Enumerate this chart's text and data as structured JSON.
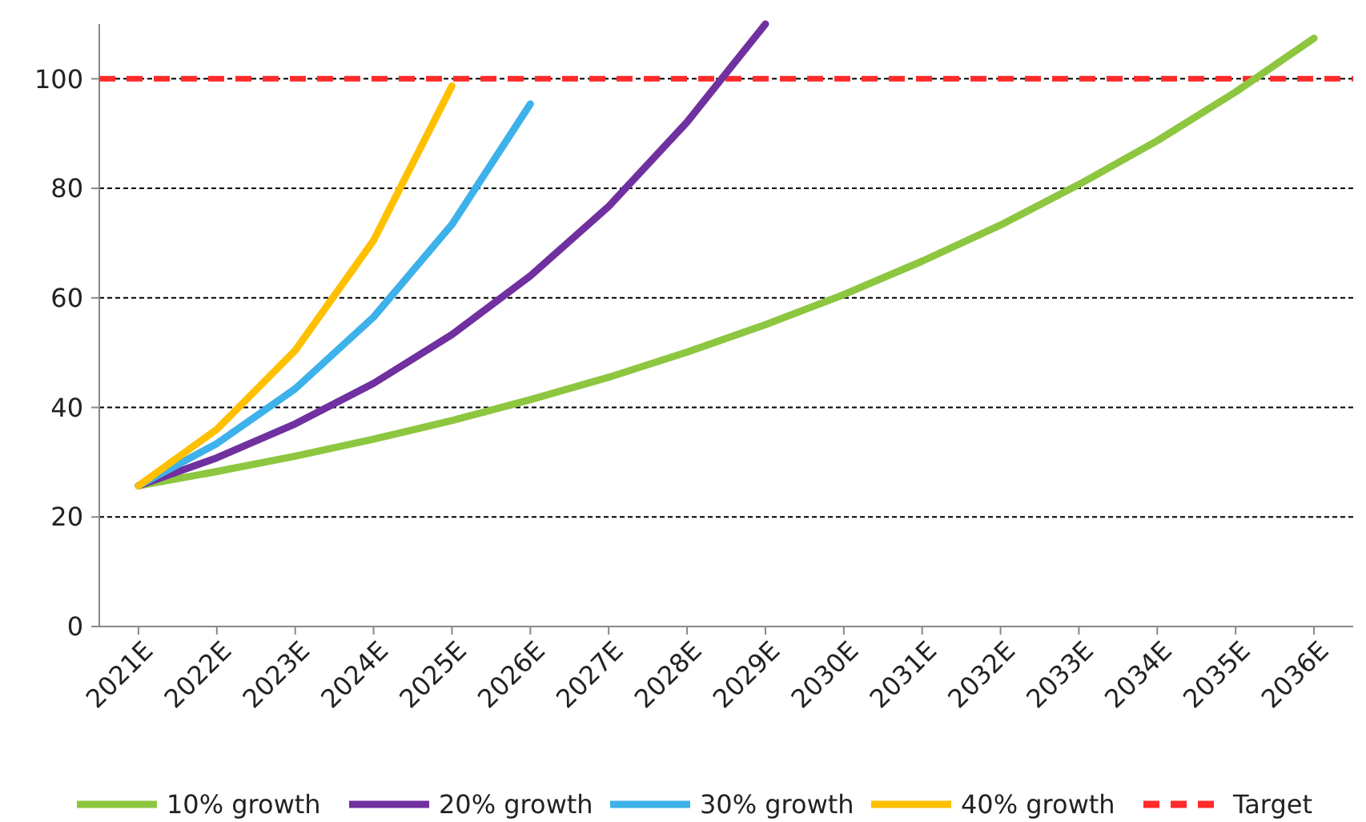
{
  "chart_data": {
    "type": "line",
    "categories": [
      "2021E",
      "2022E",
      "2023E",
      "2024E",
      "2025E",
      "2026E",
      "2027E",
      "2028E",
      "2029E",
      "2030E",
      "2031E",
      "2032E",
      "2033E",
      "2034E",
      "2035E",
      "2036E"
    ],
    "series": [
      {
        "name": "10% growth",
        "color": "#8dc63f",
        "values": [
          25.7,
          28.3,
          31.1,
          34.2,
          37.6,
          41.4,
          45.5,
          50.1,
          55.1,
          60.6,
          66.7,
          73.3,
          80.7,
          88.7,
          97.6,
          107.4
        ]
      },
      {
        "name": "20% growth",
        "color": "#7030a0",
        "values": [
          25.7,
          30.8,
          37.0,
          44.4,
          53.3,
          64.0,
          76.7,
          92.1,
          110,
          null,
          null,
          null,
          null,
          null,
          null,
          null
        ]
      },
      {
        "name": "30% growth",
        "color": "#3db1ea",
        "values": [
          25.7,
          33.4,
          43.4,
          56.5,
          73.4,
          95.4,
          null,
          null,
          null,
          null,
          null,
          null,
          null,
          null,
          null,
          null
        ]
      },
      {
        "name": "40% growth",
        "color": "#ffc000",
        "values": [
          25.7,
          36.0,
          50.4,
          70.5,
          98.7,
          null,
          null,
          null,
          null,
          null,
          null,
          null,
          null,
          null,
          null,
          null
        ]
      }
    ],
    "ylim": [
      0,
      110
    ],
    "yticks": [
      0,
      20,
      40,
      60,
      80,
      100
    ],
    "grid": "y",
    "legend": "bottom",
    "marker": "none",
    "line_style": "solid",
    "ref_lines": [
      {
        "axis": "y",
        "value": 100,
        "label": "Target",
        "color": "#ff2a2a",
        "line_style": "dashed"
      }
    ]
  }
}
